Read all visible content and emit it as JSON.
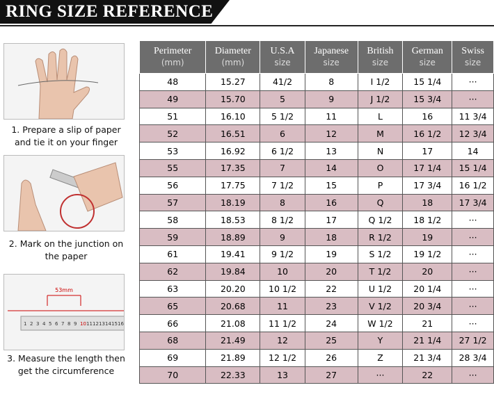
{
  "header": {
    "title": "RING SIZE REFERENCE"
  },
  "steps": [
    {
      "lines": [
        "1. Prepare a slip of paper",
        "and tie it on your finger"
      ]
    },
    {
      "lines": [
        "2. Mark on the junction on",
        "the paper"
      ]
    },
    {
      "lines": [
        "3. Measure the length then",
        "get the circumference"
      ],
      "ruler_label": "53mm",
      "ruler_numbers": [
        "1",
        "2",
        "3",
        "4",
        "5",
        "6",
        "7",
        "8",
        "9",
        "10",
        "11",
        "12",
        "13",
        "14",
        "15",
        "16"
      ]
    }
  ],
  "table": {
    "columns": [
      [
        "Perimeter",
        "(mm)"
      ],
      [
        "Diameter",
        "(mm)"
      ],
      [
        "U.S.A",
        "size"
      ],
      [
        "Japanese",
        "size"
      ],
      [
        "British",
        "size"
      ],
      [
        "German",
        "size"
      ],
      [
        "Swiss",
        "size"
      ]
    ],
    "rows": [
      [
        "48",
        "15.27",
        "41/2",
        "8",
        "I 1/2",
        "15 1/4",
        "···"
      ],
      [
        "49",
        "15.70",
        "5",
        "9",
        "J 1/2",
        "15 3/4",
        "···"
      ],
      [
        "51",
        "16.10",
        "5 1/2",
        "11",
        "L",
        "16",
        "11 3/4"
      ],
      [
        "52",
        "16.51",
        "6",
        "12",
        "M",
        "16 1/2",
        "12 3/4"
      ],
      [
        "53",
        "16.92",
        "6 1/2",
        "13",
        "N",
        "17",
        "14"
      ],
      [
        "55",
        "17.35",
        "7",
        "14",
        "O",
        "17 1/4",
        "15 1/4"
      ],
      [
        "56",
        "17.75",
        "7 1/2",
        "15",
        "P",
        "17 3/4",
        "16 1/2"
      ],
      [
        "57",
        "18.19",
        "8",
        "16",
        "Q",
        "18",
        "17 3/4"
      ],
      [
        "58",
        "18.53",
        "8 1/2",
        "17",
        "Q  1/2",
        "18 1/2",
        "···"
      ],
      [
        "59",
        "18.89",
        "9",
        "18",
        "R 1/2",
        "19",
        "···"
      ],
      [
        "61",
        "19.41",
        "9 1/2",
        "19",
        "S 1/2",
        "19 1/2",
        "···"
      ],
      [
        "62",
        "19.84",
        "10",
        "20",
        "T 1/2",
        "20",
        "···"
      ],
      [
        "63",
        "20.20",
        "10 1/2",
        "22",
        "U 1/2",
        "20 1/4",
        "···"
      ],
      [
        "65",
        "20.68",
        "11",
        "23",
        "V 1/2",
        "20 3/4",
        "···"
      ],
      [
        "66",
        "21.08",
        "11 1/2",
        "24",
        "W 1/2",
        "21",
        "···"
      ],
      [
        "68",
        "21.49",
        "12",
        "25",
        "Y",
        "21 1/4",
        "27 1/2"
      ],
      [
        "69",
        "21.89",
        "12 1/2",
        "26",
        "Z",
        "21 3/4",
        "28 3/4"
      ],
      [
        "70",
        "22.33",
        "13",
        "27",
        "···",
        "22",
        "···"
      ]
    ]
  }
}
